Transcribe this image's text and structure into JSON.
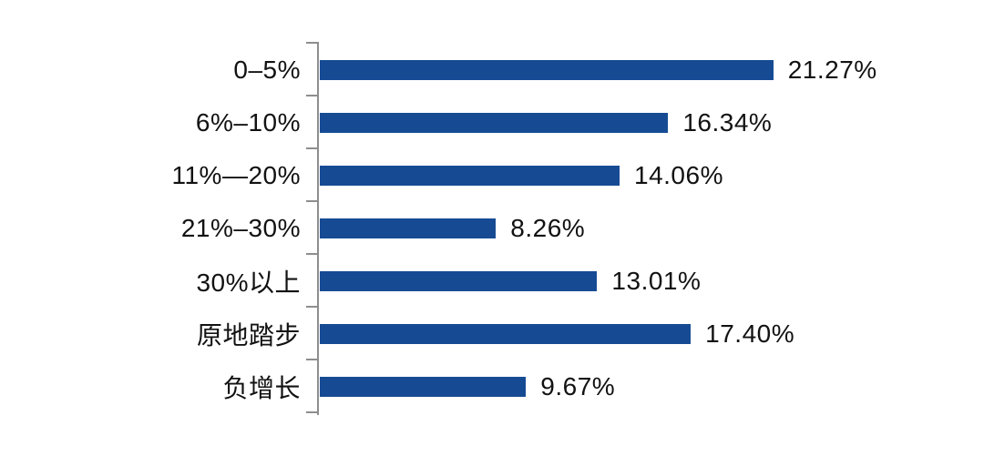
{
  "chart_data": {
    "type": "bar",
    "orientation": "horizontal",
    "title": "",
    "xlabel": "",
    "ylabel": "",
    "categories": [
      "0–5%",
      "6%–10%",
      "11%—20%",
      "21%–30%",
      "30%以上",
      "原地踏步",
      "负增长"
    ],
    "values": [
      21.27,
      16.34,
      14.06,
      8.26,
      13.01,
      17.4,
      9.67
    ],
    "value_labels": [
      "21.27%",
      "16.34%",
      "14.06%",
      "8.26%",
      "13.01%",
      "17.40%",
      "9.67%"
    ],
    "xlim": [
      0,
      23.5
    ],
    "grid": false,
    "legend": "none",
    "bar_color": "#164B94",
    "axis_color": "#8E8E8E",
    "text_color": "#121212",
    "background_color": "#FFFFFF"
  }
}
